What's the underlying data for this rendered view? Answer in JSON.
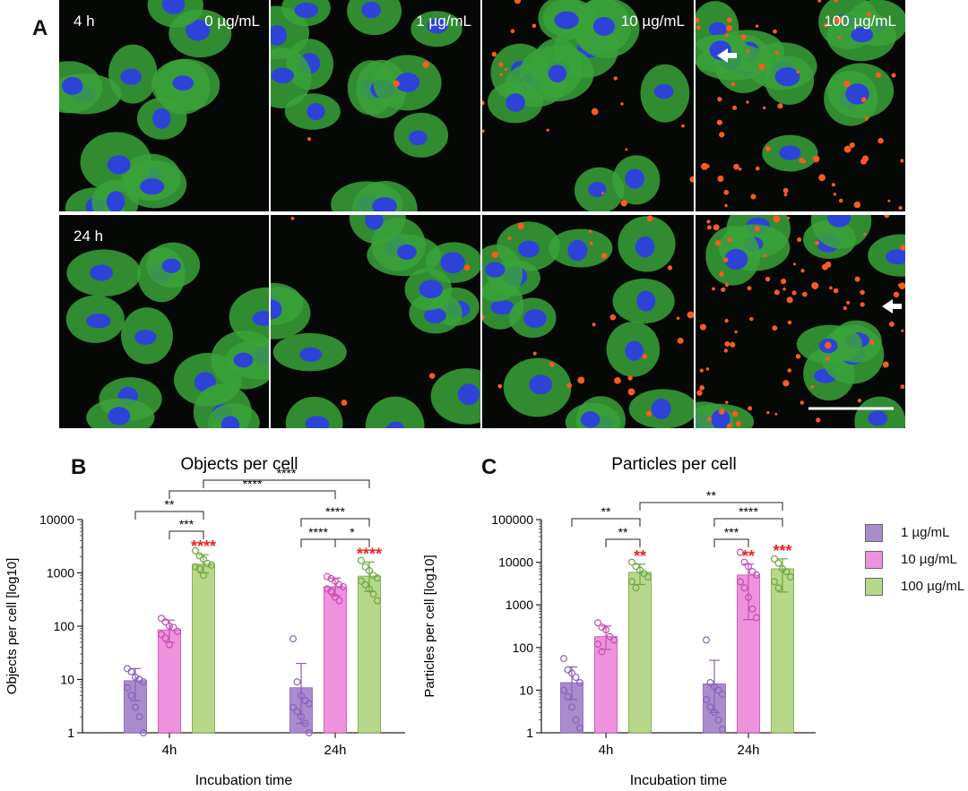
{
  "panels": {
    "a": "A",
    "b": "B",
    "c": "C"
  },
  "micrographs": {
    "columns": [
      "0 µg/mL",
      "1 µg/mL",
      "10 µg/mL",
      "100 µg/mL"
    ],
    "rows": [
      "4 h",
      "24 h"
    ]
  },
  "legend": [
    {
      "label": "1 µg/mL",
      "color": "#a98ccc"
    },
    {
      "label": "10 µg/mL",
      "color": "#ef92de"
    },
    {
      "label": "100 µg/mL",
      "color": "#b7d88a"
    }
  ],
  "colors": {
    "point_1": "#8a5fbf",
    "point_10": "#c84bb0",
    "point_100": "#6ea743",
    "significance_red": "#ee2222",
    "nucleus": "#2d43d8",
    "cytoplasm": "#3aa23a",
    "particles": "#ff5a1e"
  },
  "chart_data": [
    {
      "type": "bar",
      "panel": "B",
      "title": "Objects per cell",
      "xlabel": "Incubation time",
      "ylabel": "Objects per cell [log10]",
      "yscale": "log",
      "ylim": [
        1,
        10000
      ],
      "yticks": [
        "1",
        "10",
        "100",
        "1000",
        "10000"
      ],
      "categories": [
        "4h",
        "24h"
      ],
      "series": [
        {
          "name": "1 µg/mL",
          "values": [
            9.5,
            7
          ],
          "error_high": [
            16,
            20
          ],
          "error_low": [
            4,
            1.5
          ],
          "points": [
            [
              16,
              14,
              11,
              10,
              9,
              7,
              5,
              3,
              2,
              1
            ],
            [
              58,
              9,
              5,
              4,
              3.5,
              3,
              2.5,
              2,
              1.5,
              1
            ]
          ]
        },
        {
          "name": "10 µg/mL",
          "values": [
            85,
            550
          ],
          "error_high": [
            130,
            800
          ],
          "error_low": [
            50,
            370
          ],
          "points": [
            [
              140,
              120,
              100,
              95,
              80,
              70,
              60,
              45
            ],
            [
              850,
              780,
              700,
              600,
              550,
              500,
              450,
              350,
              300
            ]
          ]
        },
        {
          "name": "100 µg/mL",
          "values": [
            1450,
            870
          ],
          "error_high": [
            2200,
            1600
          ],
          "error_low": [
            1000,
            450
          ],
          "points": [
            [
              2600,
              2100,
              1800,
              1500,
              1400,
              1300,
              1200,
              900
            ],
            [
              1700,
              1300,
              1100,
              900,
              800,
              700,
              600,
              500,
              400,
              300
            ]
          ]
        }
      ],
      "significance_vs_control": [
        [
          "",
          "",
          "****"
        ],
        [
          "",
          "",
          "****"
        ]
      ],
      "brackets": [
        "****",
        "****",
        "**",
        "***",
        "****",
        "****",
        "*"
      ]
    },
    {
      "type": "bar",
      "panel": "C",
      "title": "Particles per cell",
      "xlabel": "Incubation time",
      "ylabel": "Particles per cell [log10]",
      "yscale": "log",
      "ylim": [
        1,
        100000
      ],
      "yticks": [
        "1",
        "10",
        "100",
        "1000",
        "10000",
        "100000"
      ],
      "categories": [
        "4h",
        "24h"
      ],
      "series": [
        {
          "name": "1 µg/mL",
          "values": [
            15,
            14
          ],
          "error_high": [
            35,
            50
          ],
          "error_low": [
            6,
            3
          ],
          "points": [
            [
              55,
              30,
              25,
              20,
              15,
              10,
              7,
              4,
              2,
              1.3
            ],
            [
              150,
              15,
              12,
              10,
              8,
              6,
              4,
              3,
              2,
              1.2
            ]
          ]
        },
        {
          "name": "10 µg/mL",
          "values": [
            180,
            5000
          ],
          "error_high": [
            320,
            9000
          ],
          "error_low": [
            90,
            450
          ],
          "points": [
            [
              380,
              300,
              260,
              180,
              150,
              120,
              80
            ],
            [
              17000,
              10000,
              8000,
              6000,
              5000,
              3500,
              2500,
              1500,
              800,
              500
            ]
          ]
        },
        {
          "name": "100 µg/mL",
          "values": [
            5800,
            7000
          ],
          "error_high": [
            9000,
            12000
          ],
          "error_low": [
            3000,
            2000
          ],
          "points": [
            [
              10000,
              8000,
              6500,
              5500,
              4500,
              3500,
              2500
            ],
            [
              12000,
              9500,
              7000,
              6000,
              4500,
              3500,
              2500
            ]
          ]
        }
      ],
      "significance_vs_control": [
        [
          "",
          "",
          "**"
        ],
        [
          "",
          "**",
          "***"
        ]
      ],
      "brackets": [
        "**",
        "**",
        "**",
        "****",
        "***"
      ]
    }
  ]
}
